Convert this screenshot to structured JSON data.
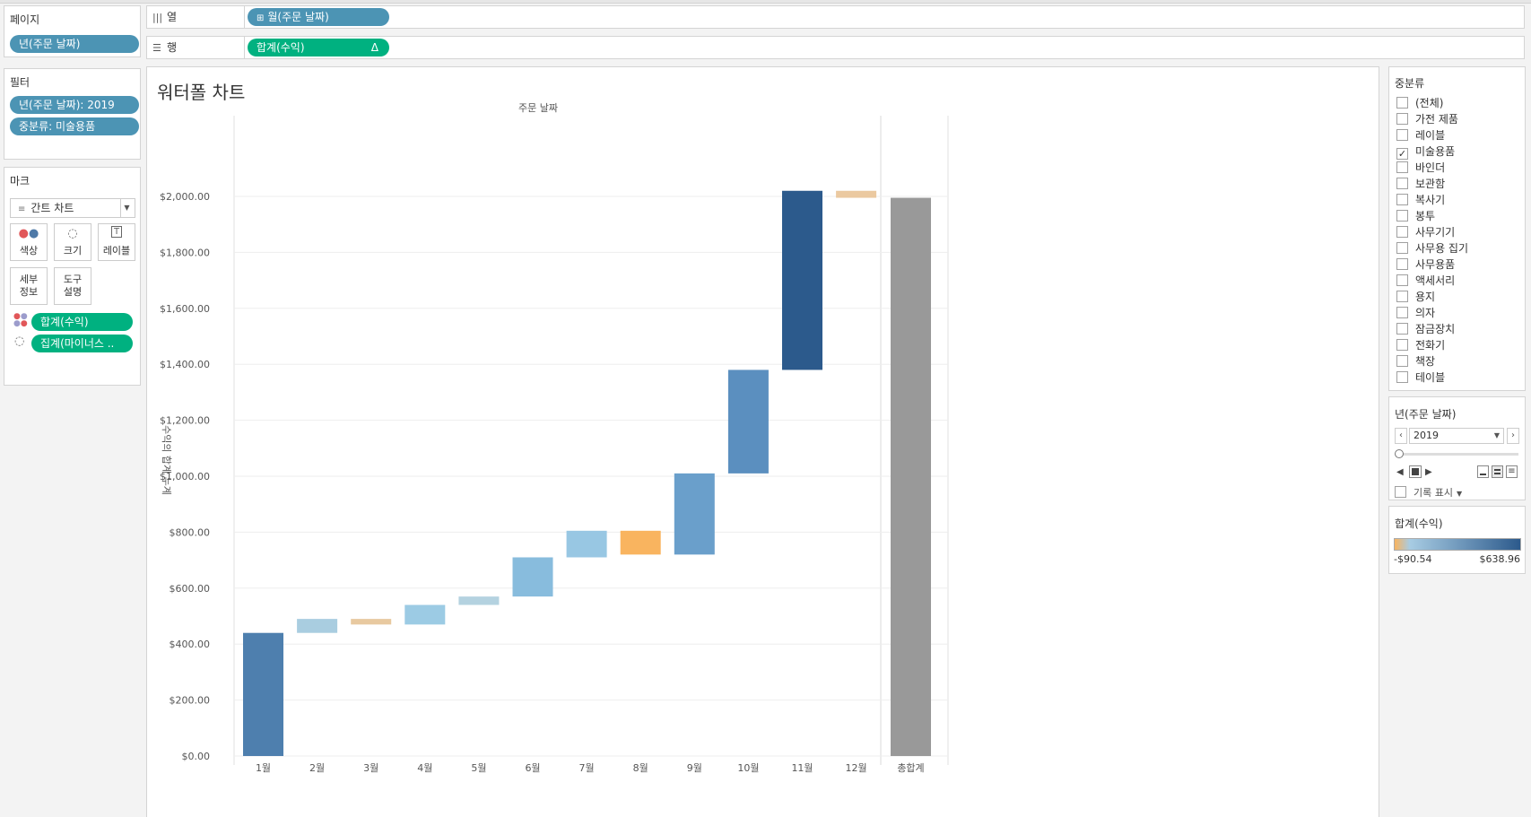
{
  "pages_card": {
    "title": "페이지",
    "pill": "년(주문 날짜)"
  },
  "filters_card": {
    "title": "필터",
    "pills": [
      "년(주문 날짜): 2019",
      "중분류: 미술용품"
    ]
  },
  "marks_card": {
    "title": "마크",
    "mark_type": "간트 차트",
    "buttons": {
      "color": "색상",
      "size": "크기",
      "label": "레이블",
      "detail": [
        "세부",
        "정보"
      ],
      "tooltip": [
        "도구",
        "설명"
      ]
    },
    "fields": [
      "합계(수익)",
      "집계(마이너스 .."
    ]
  },
  "columns_shelf": {
    "label": "열",
    "pill": "월(주문 날짜)"
  },
  "rows_shelf": {
    "label": "행",
    "pill": "합계(수익)",
    "delta": "Δ"
  },
  "sheet": {
    "title": "워터폴 차트"
  },
  "chart_data": {
    "type": "bar",
    "subtype": "waterfall",
    "title": "주문 날짜",
    "xlabel": "",
    "ylabel": "수익의 합계 누계",
    "categories": [
      "1월",
      "2월",
      "3월",
      "4월",
      "5월",
      "6월",
      "7월",
      "8월",
      "9월",
      "10월",
      "11월",
      "12월",
      "총합계"
    ],
    "series": [
      {
        "start": [
          0,
          440,
          490,
          470,
          540,
          570,
          710,
          805,
          720,
          1010,
          1380,
          2020,
          0
        ],
        "end": [
          440,
          490,
          470,
          540,
          570,
          710,
          805,
          720,
          1010,
          1380,
          2020,
          1995,
          1995
        ],
        "colors": [
          "#4e7fae",
          "#a9cde0",
          "#e8c9a0",
          "#9ccbe4",
          "#b4d2e0",
          "#88bcdd",
          "#98c7e3",
          "#f9b45f",
          "#6a9fcb",
          "#5b8fbf",
          "#2c5a8c",
          "#ebc9a0",
          "#999999"
        ]
      }
    ],
    "ylim": [
      0,
      2100
    ],
    "yticks": [
      "$0.00",
      "$200.00",
      "$400.00",
      "$600.00",
      "$800.00",
      "$1,000.00",
      "$1,200.00",
      "$1,400.00",
      "$1,600.00",
      "$1,800.00",
      "$2,000.00"
    ],
    "ytick_values": [
      0,
      200,
      400,
      600,
      800,
      1000,
      1200,
      1400,
      1600,
      1800,
      2000
    ],
    "grid": true,
    "legend": "right"
  },
  "filter_panel": {
    "title": "중분류",
    "items": [
      {
        "label": "(전체)",
        "checked": false
      },
      {
        "label": "가전 제품",
        "checked": false
      },
      {
        "label": "레이블",
        "checked": false
      },
      {
        "label": "미술용품",
        "checked": true
      },
      {
        "label": "바인더",
        "checked": false
      },
      {
        "label": "보관함",
        "checked": false
      },
      {
        "label": "복사기",
        "checked": false
      },
      {
        "label": "봉투",
        "checked": false
      },
      {
        "label": "사무기기",
        "checked": false
      },
      {
        "label": "사무용 집기",
        "checked": false
      },
      {
        "label": "사무용품",
        "checked": false
      },
      {
        "label": "액세서리",
        "checked": false
      },
      {
        "label": "용지",
        "checked": false
      },
      {
        "label": "의자",
        "checked": false
      },
      {
        "label": "잠금장치",
        "checked": false
      },
      {
        "label": "전화기",
        "checked": false
      },
      {
        "label": "책장",
        "checked": false
      },
      {
        "label": "테이블",
        "checked": false
      }
    ]
  },
  "year_panel": {
    "title": "년(주문 날짜)",
    "value": "2019",
    "history_label": "기록 표시"
  },
  "legend_panel": {
    "title": "합계(수익)",
    "min": "-$90.54",
    "max": "$638.96",
    "gradient": [
      "#f9b45f",
      "#a8cce3",
      "#2c5a8c"
    ]
  }
}
